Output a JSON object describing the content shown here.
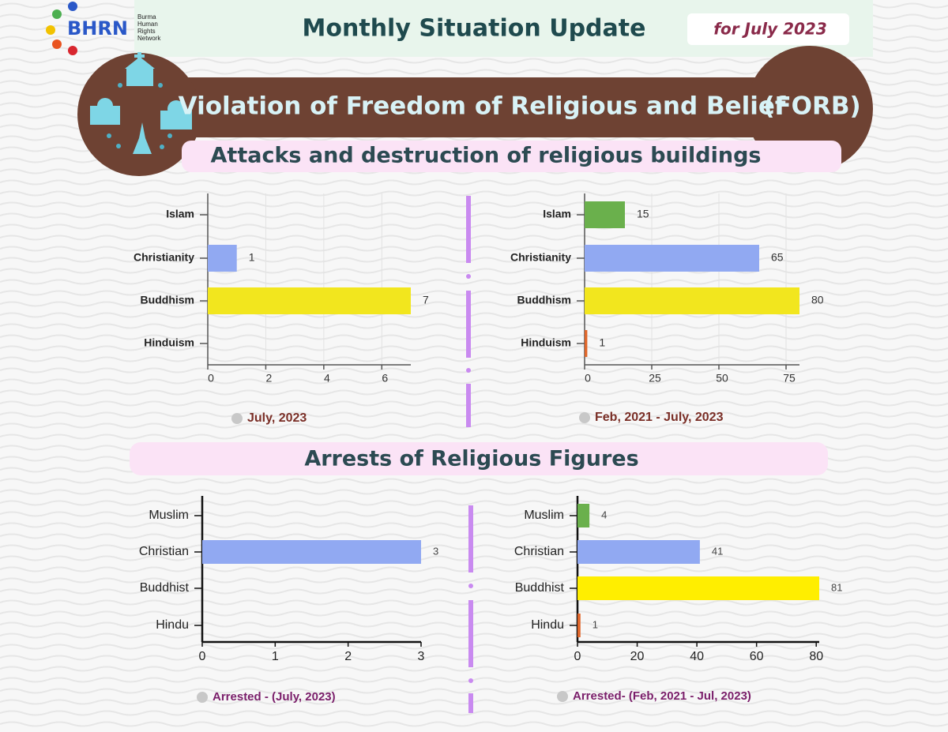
{
  "header": {
    "logo": "BHRN",
    "org": [
      "Burma",
      "Human",
      "Rights",
      "Network"
    ],
    "title": "Monthly Situation Update",
    "period": "for July 2023"
  },
  "banner": {
    "title": "Violation of Freedom of Religious and Belief",
    "abbr": "(FORB)"
  },
  "sections": [
    "Attacks and destruction of religious buildings",
    "Arrests of Religious Figures"
  ],
  "chart_data": [
    {
      "type": "bar",
      "orientation": "horizontal",
      "categories": [
        "Islam",
        "Christianity",
        "Buddhism",
        "Hinduism"
      ],
      "values": [
        null,
        1,
        7,
        null
      ],
      "colors": [
        "#6ab04c",
        "#91a9f2",
        "#f2e61e",
        "#e0662a"
      ],
      "xlim": [
        0,
        7
      ],
      "xticks": [
        0,
        2,
        4,
        6
      ],
      "grid": true,
      "legend": "July, 2023"
    },
    {
      "type": "bar",
      "orientation": "horizontal",
      "categories": [
        "Islam",
        "Christianity",
        "Buddhism",
        "Hinduism"
      ],
      "values": [
        15,
        65,
        80,
        1
      ],
      "colors": [
        "#6ab04c",
        "#91a9f2",
        "#f2e61e",
        "#e0662a"
      ],
      "xlim": [
        0,
        80
      ],
      "xticks": [
        0,
        25,
        50,
        75
      ],
      "grid": true,
      "legend": "Feb, 2021 - July, 2023"
    },
    {
      "type": "bar",
      "orientation": "horizontal",
      "categories": [
        "Muslim",
        "Christian",
        "Buddhist",
        "Hindu"
      ],
      "values": [
        null,
        3,
        null,
        null
      ],
      "colors": [
        "#6ab04c",
        "#91a9f2",
        "#ffee00",
        "#e0662a"
      ],
      "xlim": [
        0,
        3
      ],
      "xticks": [
        0,
        1,
        2,
        3
      ],
      "grid": false,
      "legend": "Arrested - (July, 2023)"
    },
    {
      "type": "bar",
      "orientation": "horizontal",
      "categories": [
        "Muslim",
        "Christian",
        "Buddhist",
        "Hindu"
      ],
      "values": [
        4,
        41,
        81,
        1
      ],
      "colors": [
        "#6ab04c",
        "#91a9f2",
        "#ffee00",
        "#e0662a"
      ],
      "xlim": [
        0,
        81
      ],
      "xticks": [
        0,
        20,
        40,
        60,
        80
      ],
      "grid": false,
      "legend": "Arrested- (Feb, 2021 - Jul, 2023)"
    }
  ]
}
